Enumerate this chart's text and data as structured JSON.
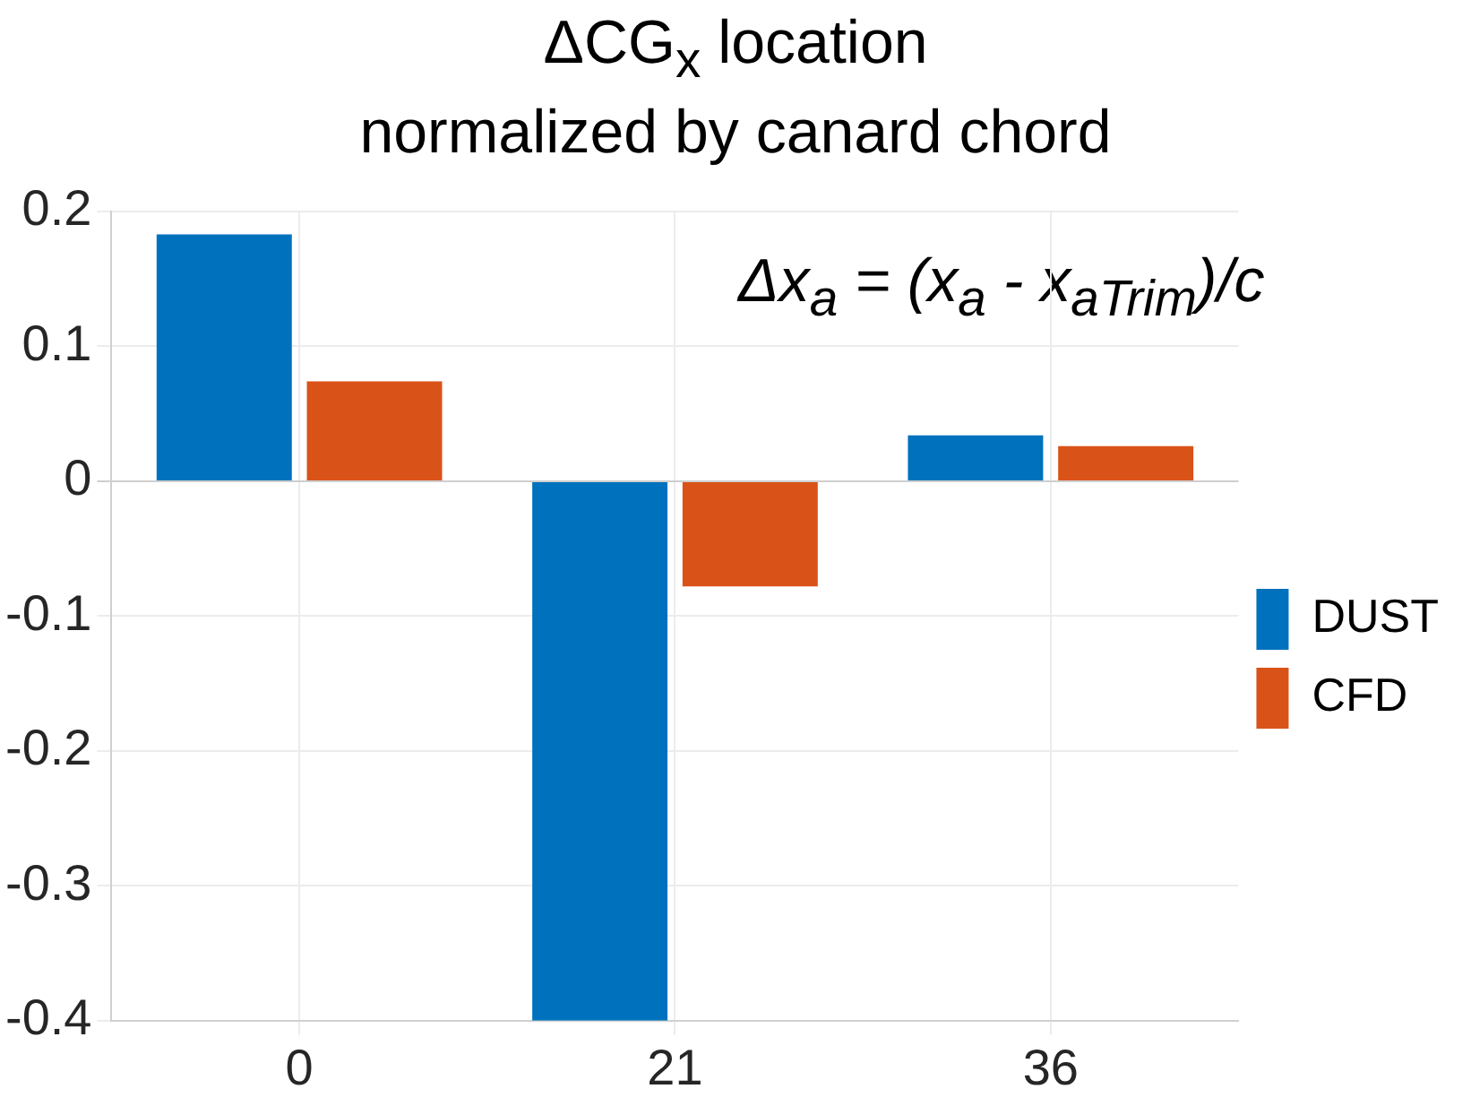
{
  "chart_data": {
    "type": "bar",
    "title": "ΔCG$_{x}$ location\nnormalized by canard chord",
    "categories": [
      "0",
      "21",
      "36"
    ],
    "series": [
      {
        "name": "DUST",
        "color": "#0072bd",
        "values": [
          0.183,
          -0.4,
          0.034
        ]
      },
      {
        "name": "CFD",
        "color": "#d95319",
        "values": [
          0.074,
          -0.078,
          0.026
        ]
      }
    ],
    "ylim": [
      -0.4,
      0.2
    ],
    "yticks": [
      -0.4,
      -0.3,
      -0.2,
      -0.1,
      0,
      0.1,
      0.2
    ],
    "annotations": [
      "Δx$_{a}$ = (x$_{a}$ - x$_{aTrim}$)/c"
    ],
    "grid": true,
    "legend": "right"
  }
}
